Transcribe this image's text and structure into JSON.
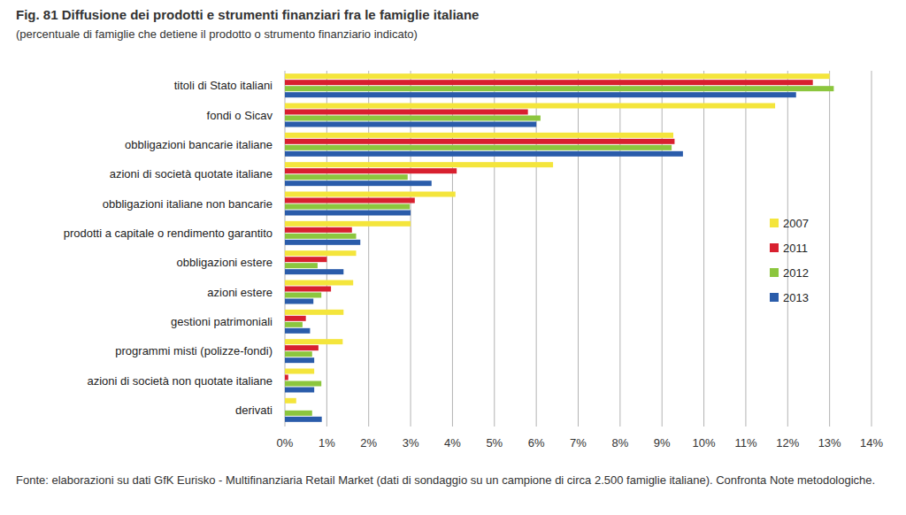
{
  "chart_data": {
    "type": "bar",
    "orientation": "horizontal",
    "title": "Fig. 81 Diffusione dei prodotti e strumenti finanziari fra le famiglie italiane",
    "subtitle": "(percentuale di famiglie che detiene il prodotto o strumento finanziario indicato)",
    "source": "Fonte: elaborazioni su dati GfK Eurisko - Multifinanziaria Retail Market (dati di sondaggio su un campione di circa 2.500 famiglie italiane). Confronta Note metodologiche.",
    "categories": [
      "titoli di Stato italiani",
      "fondi o Sicav",
      "obbligazioni bancarie italiane",
      "azioni di società quotate italiane",
      "obbligazioni italiane non bancarie",
      "prodotti a capitale o rendimento garantito",
      "obbligazioni estere",
      "azioni estere",
      "gestioni patrimoniali",
      "programmi misti (polizze-fondi)",
      "azioni di società non quotate italiane",
      "derivati"
    ],
    "series": [
      {
        "name": "2007",
        "color": "#f4e53c",
        "values": [
          13.0,
          11.7,
          9.27,
          6.4,
          4.07,
          3.0,
          1.7,
          1.63,
          1.4,
          1.38,
          0.7,
          0.27
        ]
      },
      {
        "name": "2011",
        "color": "#d8202f",
        "values": [
          12.6,
          5.8,
          9.3,
          4.1,
          3.1,
          1.6,
          1.0,
          1.1,
          0.5,
          0.8,
          0.08,
          0
        ]
      },
      {
        "name": "2012",
        "color": "#8cc63e",
        "values": [
          13.1,
          6.1,
          9.23,
          2.93,
          2.98,
          1.7,
          0.78,
          0.87,
          0.42,
          0.65,
          0.87,
          0.65
        ]
      },
      {
        "name": "2013",
        "color": "#2a5caa",
        "values": [
          12.2,
          6.0,
          9.5,
          3.5,
          3.0,
          1.8,
          1.4,
          0.68,
          0.6,
          0.7,
          0.7,
          0.88
        ]
      }
    ],
    "xlim": [
      0,
      14
    ],
    "xticks": [
      {
        "value": 0,
        "label": "0%"
      },
      {
        "value": 1,
        "label": "1%"
      },
      {
        "value": 2,
        "label": "2%"
      },
      {
        "value": 3,
        "label": "3%"
      },
      {
        "value": 4,
        "label": "4%"
      },
      {
        "value": 5,
        "label": "5%"
      },
      {
        "value": 6,
        "label": "6%"
      },
      {
        "value": 7,
        "label": "7%"
      },
      {
        "value": 8,
        "label": "8%"
      },
      {
        "value": 9,
        "label": "9%"
      },
      {
        "value": 10,
        "label": "10%"
      },
      {
        "value": 11,
        "label": "11%"
      },
      {
        "value": 12,
        "label": "12%"
      },
      {
        "value": 13,
        "label": "13%"
      },
      {
        "value": 14,
        "label": "14%"
      }
    ],
    "grid": true,
    "legend": "right"
  }
}
